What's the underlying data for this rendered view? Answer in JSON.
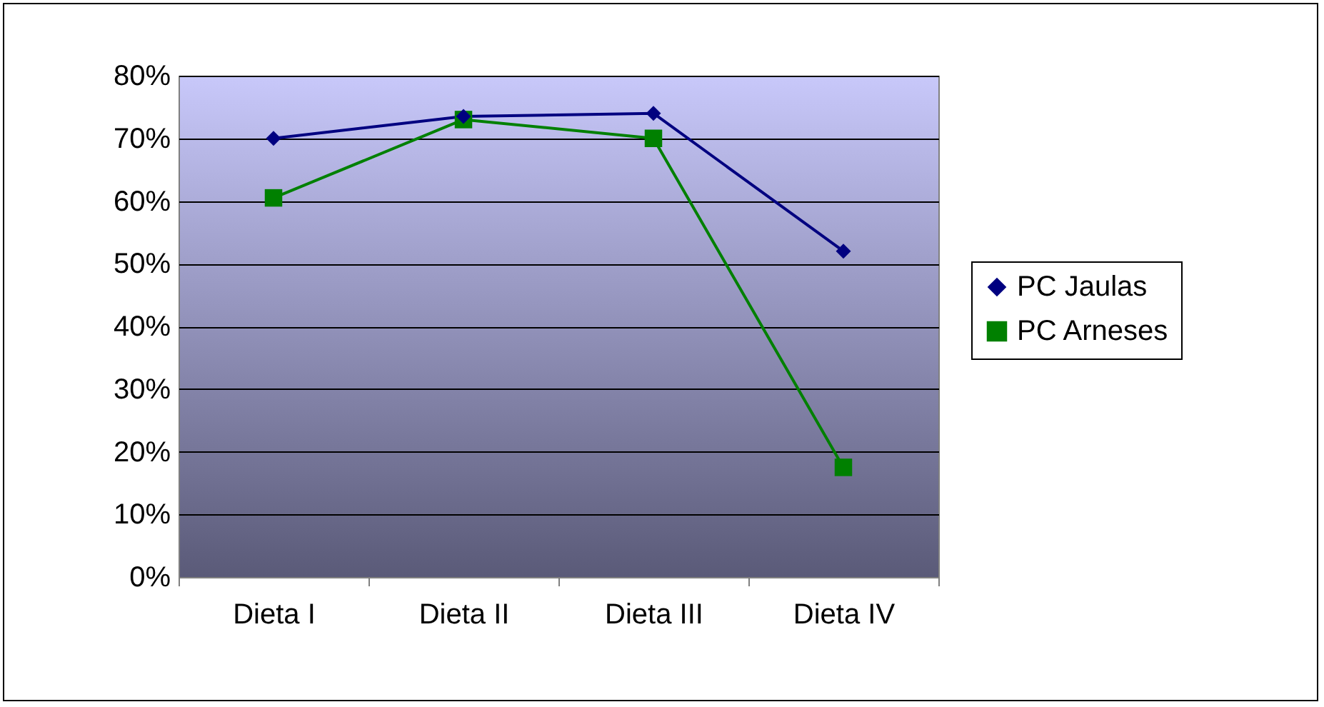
{
  "chart_data": {
    "type": "line",
    "categories": [
      "Dieta I",
      "Dieta II",
      "Dieta III",
      "Dieta IV"
    ],
    "series": [
      {
        "name": "PC Jaulas",
        "color": "#000080",
        "marker": "diamond",
        "values": [
          0.7,
          0.735,
          0.74,
          0.52
        ]
      },
      {
        "name": "PC Arneses",
        "color": "#008000",
        "marker": "square",
        "values": [
          0.605,
          0.73,
          0.7,
          0.175
        ]
      }
    ],
    "ylim": [
      0,
      0.8
    ],
    "yticks": [
      {
        "value": 0,
        "label": "0%"
      },
      {
        "value": 0.1,
        "label": "10%"
      },
      {
        "value": 0.2,
        "label": "20%"
      },
      {
        "value": 0.3,
        "label": "30%"
      },
      {
        "value": 0.4,
        "label": "40%"
      },
      {
        "value": 0.5,
        "label": "50%"
      },
      {
        "value": 0.6,
        "label": "60%"
      },
      {
        "value": 0.7,
        "label": "70%"
      },
      {
        "value": 0.8,
        "label": "80%"
      }
    ],
    "grid": "y",
    "legend": "right",
    "line_style": "solid"
  }
}
